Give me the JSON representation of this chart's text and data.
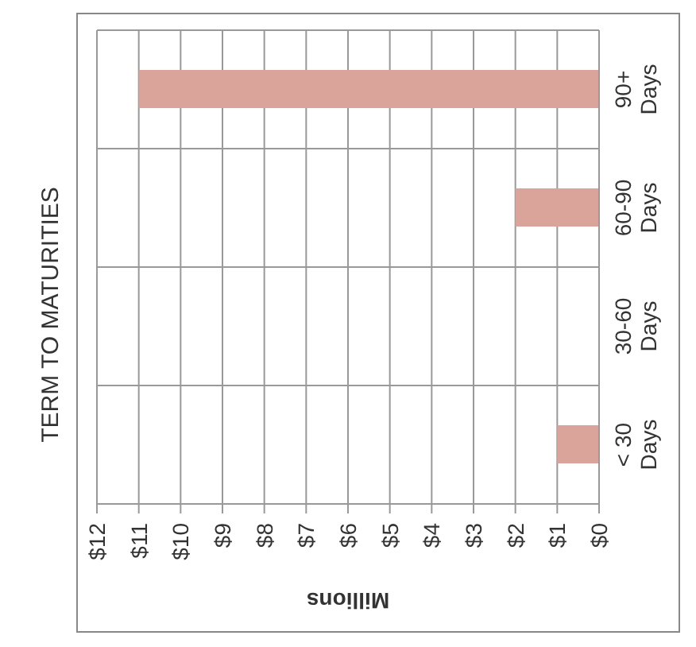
{
  "chart_data": {
    "type": "bar",
    "orientation": "horizontal",
    "title": "TERM TO MATURITIES",
    "xlabel": "Millions",
    "categories": [
      "90+ Days",
      "60-90 Days",
      "30-60 Days",
      "< 30 Days"
    ],
    "values": [
      11,
      2,
      0,
      1
    ],
    "color": "#dba49a",
    "xlim": [
      12,
      0
    ],
    "xticks": [
      {
        "value": 12,
        "label": "$12"
      },
      {
        "value": 11,
        "label": "$11"
      },
      {
        "value": 10,
        "label": "$10"
      },
      {
        "value": 9,
        "label": "$9"
      },
      {
        "value": 8,
        "label": "$8"
      },
      {
        "value": 7,
        "label": "$7"
      },
      {
        "value": 6,
        "label": "$6"
      },
      {
        "value": 5,
        "label": "$5"
      },
      {
        "value": 4,
        "label": "$4"
      },
      {
        "value": 3,
        "label": "$3"
      },
      {
        "value": 2,
        "label": "$2"
      },
      {
        "value": 1,
        "label": "$1"
      },
      {
        "value": 0,
        "label": "$0"
      }
    ],
    "grid": true
  }
}
